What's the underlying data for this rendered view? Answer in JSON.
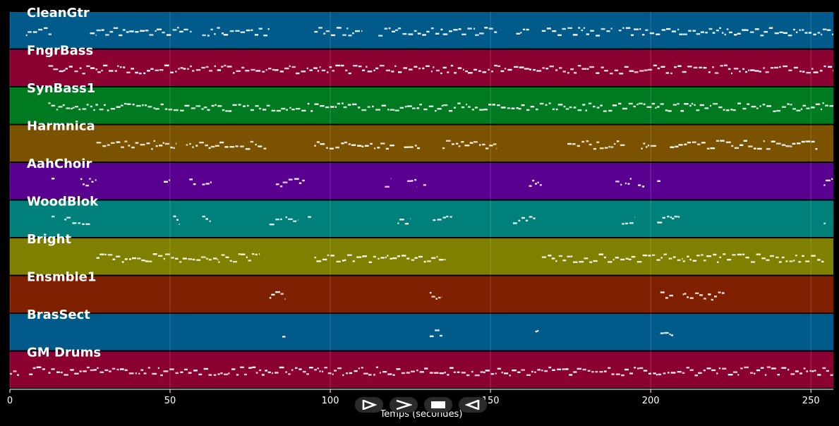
{
  "chart_data": {
    "type": "piano-roll",
    "xlabel": "Temps (secondes)",
    "xlim": [
      0,
      257
    ],
    "xticks": [
      0,
      50,
      100,
      150,
      200,
      250
    ],
    "grid": true,
    "tracks": [
      {
        "name": "CleanGtr",
        "color": "#005a8a",
        "segments": [
          [
            5,
            13
          ],
          [
            25,
            27
          ],
          [
            27,
            57
          ],
          [
            60,
            81
          ],
          [
            95,
            110
          ],
          [
            115,
            130
          ],
          [
            130,
            152
          ],
          [
            158,
            162
          ],
          [
            166,
            188
          ],
          [
            190,
            210
          ],
          [
            210,
            257
          ]
        ]
      },
      {
        "name": "FngrBass",
        "color": "#8a0030",
        "segments": [
          [
            12,
            257
          ]
        ]
      },
      {
        "name": "SynBass1",
        "color": "#007a20",
        "segments": [
          [
            12,
            257
          ]
        ]
      },
      {
        "name": "Harmnica",
        "color": "#7a5200",
        "segments": [
          [
            27,
            52
          ],
          [
            55,
            80
          ],
          [
            95,
            120
          ],
          [
            123,
            128
          ],
          [
            135,
            152
          ],
          [
            174,
            192
          ],
          [
            197,
            202
          ],
          [
            206,
            252
          ]
        ]
      },
      {
        "name": "AahChoir",
        "color": "#5a0090",
        "segments": [
          [
            13,
            14
          ],
          [
            22,
            27
          ],
          [
            48,
            50
          ],
          [
            56,
            58
          ],
          [
            60,
            63
          ],
          [
            83,
            92
          ],
          [
            117,
            119
          ],
          [
            124,
            127
          ],
          [
            129,
            130
          ],
          [
            162,
            166
          ],
          [
            189,
            191
          ],
          [
            192,
            194
          ],
          [
            196,
            198
          ],
          [
            202,
            203
          ],
          [
            254,
            257
          ]
        ]
      },
      {
        "name": "WoodBlok",
        "color": "#00807a",
        "segments": [
          [
            13,
            14
          ],
          [
            17,
            25
          ],
          [
            51,
            53
          ],
          [
            60,
            63
          ],
          [
            81,
            85
          ],
          [
            86,
            90
          ],
          [
            93,
            94
          ],
          [
            121,
            125
          ],
          [
            132,
            138
          ],
          [
            157,
            164
          ],
          [
            191,
            195
          ],
          [
            202,
            209
          ],
          [
            254,
            255
          ]
        ]
      },
      {
        "name": "Bright",
        "color": "#7f7f00",
        "segments": [
          [
            27,
            65
          ],
          [
            65,
            78
          ],
          [
            95,
            110
          ],
          [
            110,
            136
          ],
          [
            166,
            193
          ],
          [
            193,
            210
          ],
          [
            210,
            254
          ]
        ]
      },
      {
        "name": "Ensmble1",
        "color": "#7f2000",
        "segments": [
          [
            81,
            86
          ],
          [
            131,
            135
          ],
          [
            203,
            207
          ],
          [
            210,
            223
          ]
        ]
      },
      {
        "name": "BrasSect",
        "color": "#005a8a",
        "segments": [
          [
            85,
            86
          ],
          [
            131,
            135
          ],
          [
            164,
            165
          ],
          [
            203,
            207
          ]
        ]
      },
      {
        "name": "GM Drums",
        "color": "#8a0030",
        "segments": [
          [
            0,
            3
          ],
          [
            6,
            11
          ],
          [
            12,
            257
          ]
        ]
      }
    ]
  },
  "controls": [
    {
      "name": "play-icon",
      "symbol": "play"
    },
    {
      "name": "fast-forward-icon",
      "symbol": "forward"
    },
    {
      "name": "stop-icon",
      "symbol": "stop"
    },
    {
      "name": "reverse-icon",
      "symbol": "reverse"
    }
  ]
}
